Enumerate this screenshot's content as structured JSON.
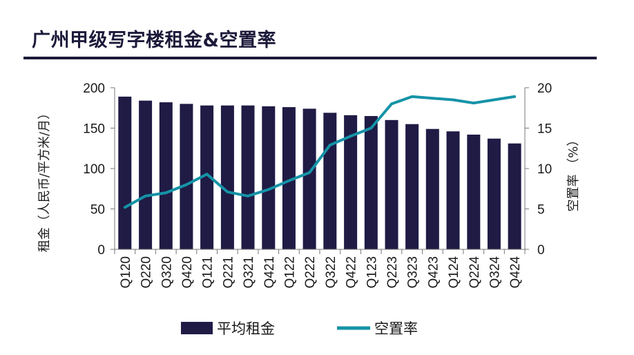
{
  "title": "广州甲级写字楼租金&空置率",
  "chart_data": {
    "type": "bar+line",
    "categories": [
      "Q120",
      "Q220",
      "Q320",
      "Q420",
      "Q121",
      "Q221",
      "Q321",
      "Q421",
      "Q122",
      "Q222",
      "Q322",
      "Q422",
      "Q123",
      "Q223",
      "Q323",
      "Q423",
      "Q124",
      "Q224",
      "Q324",
      "Q424"
    ],
    "series": [
      {
        "name": "平均租金",
        "type": "bar",
        "axis": "left",
        "color": "#1f1b45",
        "values": [
          189,
          184,
          182,
          180,
          178,
          178,
          178,
          177,
          176,
          174,
          169,
          166,
          165,
          160,
          155,
          149,
          146,
          142,
          137,
          131
        ]
      },
      {
        "name": "空置率",
        "type": "line",
        "axis": "right",
        "color": "#1593a7",
        "values": [
          5.2,
          6.6,
          7.0,
          8.0,
          9.3,
          7.1,
          6.6,
          7.4,
          8.5,
          9.5,
          12.9,
          14.0,
          15.0,
          18.0,
          18.9,
          18.7,
          18.5,
          18.1,
          18.5,
          18.9
        ]
      }
    ],
    "ylabel": "租金（人民币/平方米/月）",
    "y2label": "空置率 （%）",
    "ylim": [
      0,
      200
    ],
    "yticks": [
      0,
      50,
      100,
      150,
      200
    ],
    "y2lim": [
      0,
      20
    ],
    "y2ticks": [
      0,
      5,
      10,
      15,
      20
    ],
    "grid": false,
    "legend": "bottom-center"
  }
}
